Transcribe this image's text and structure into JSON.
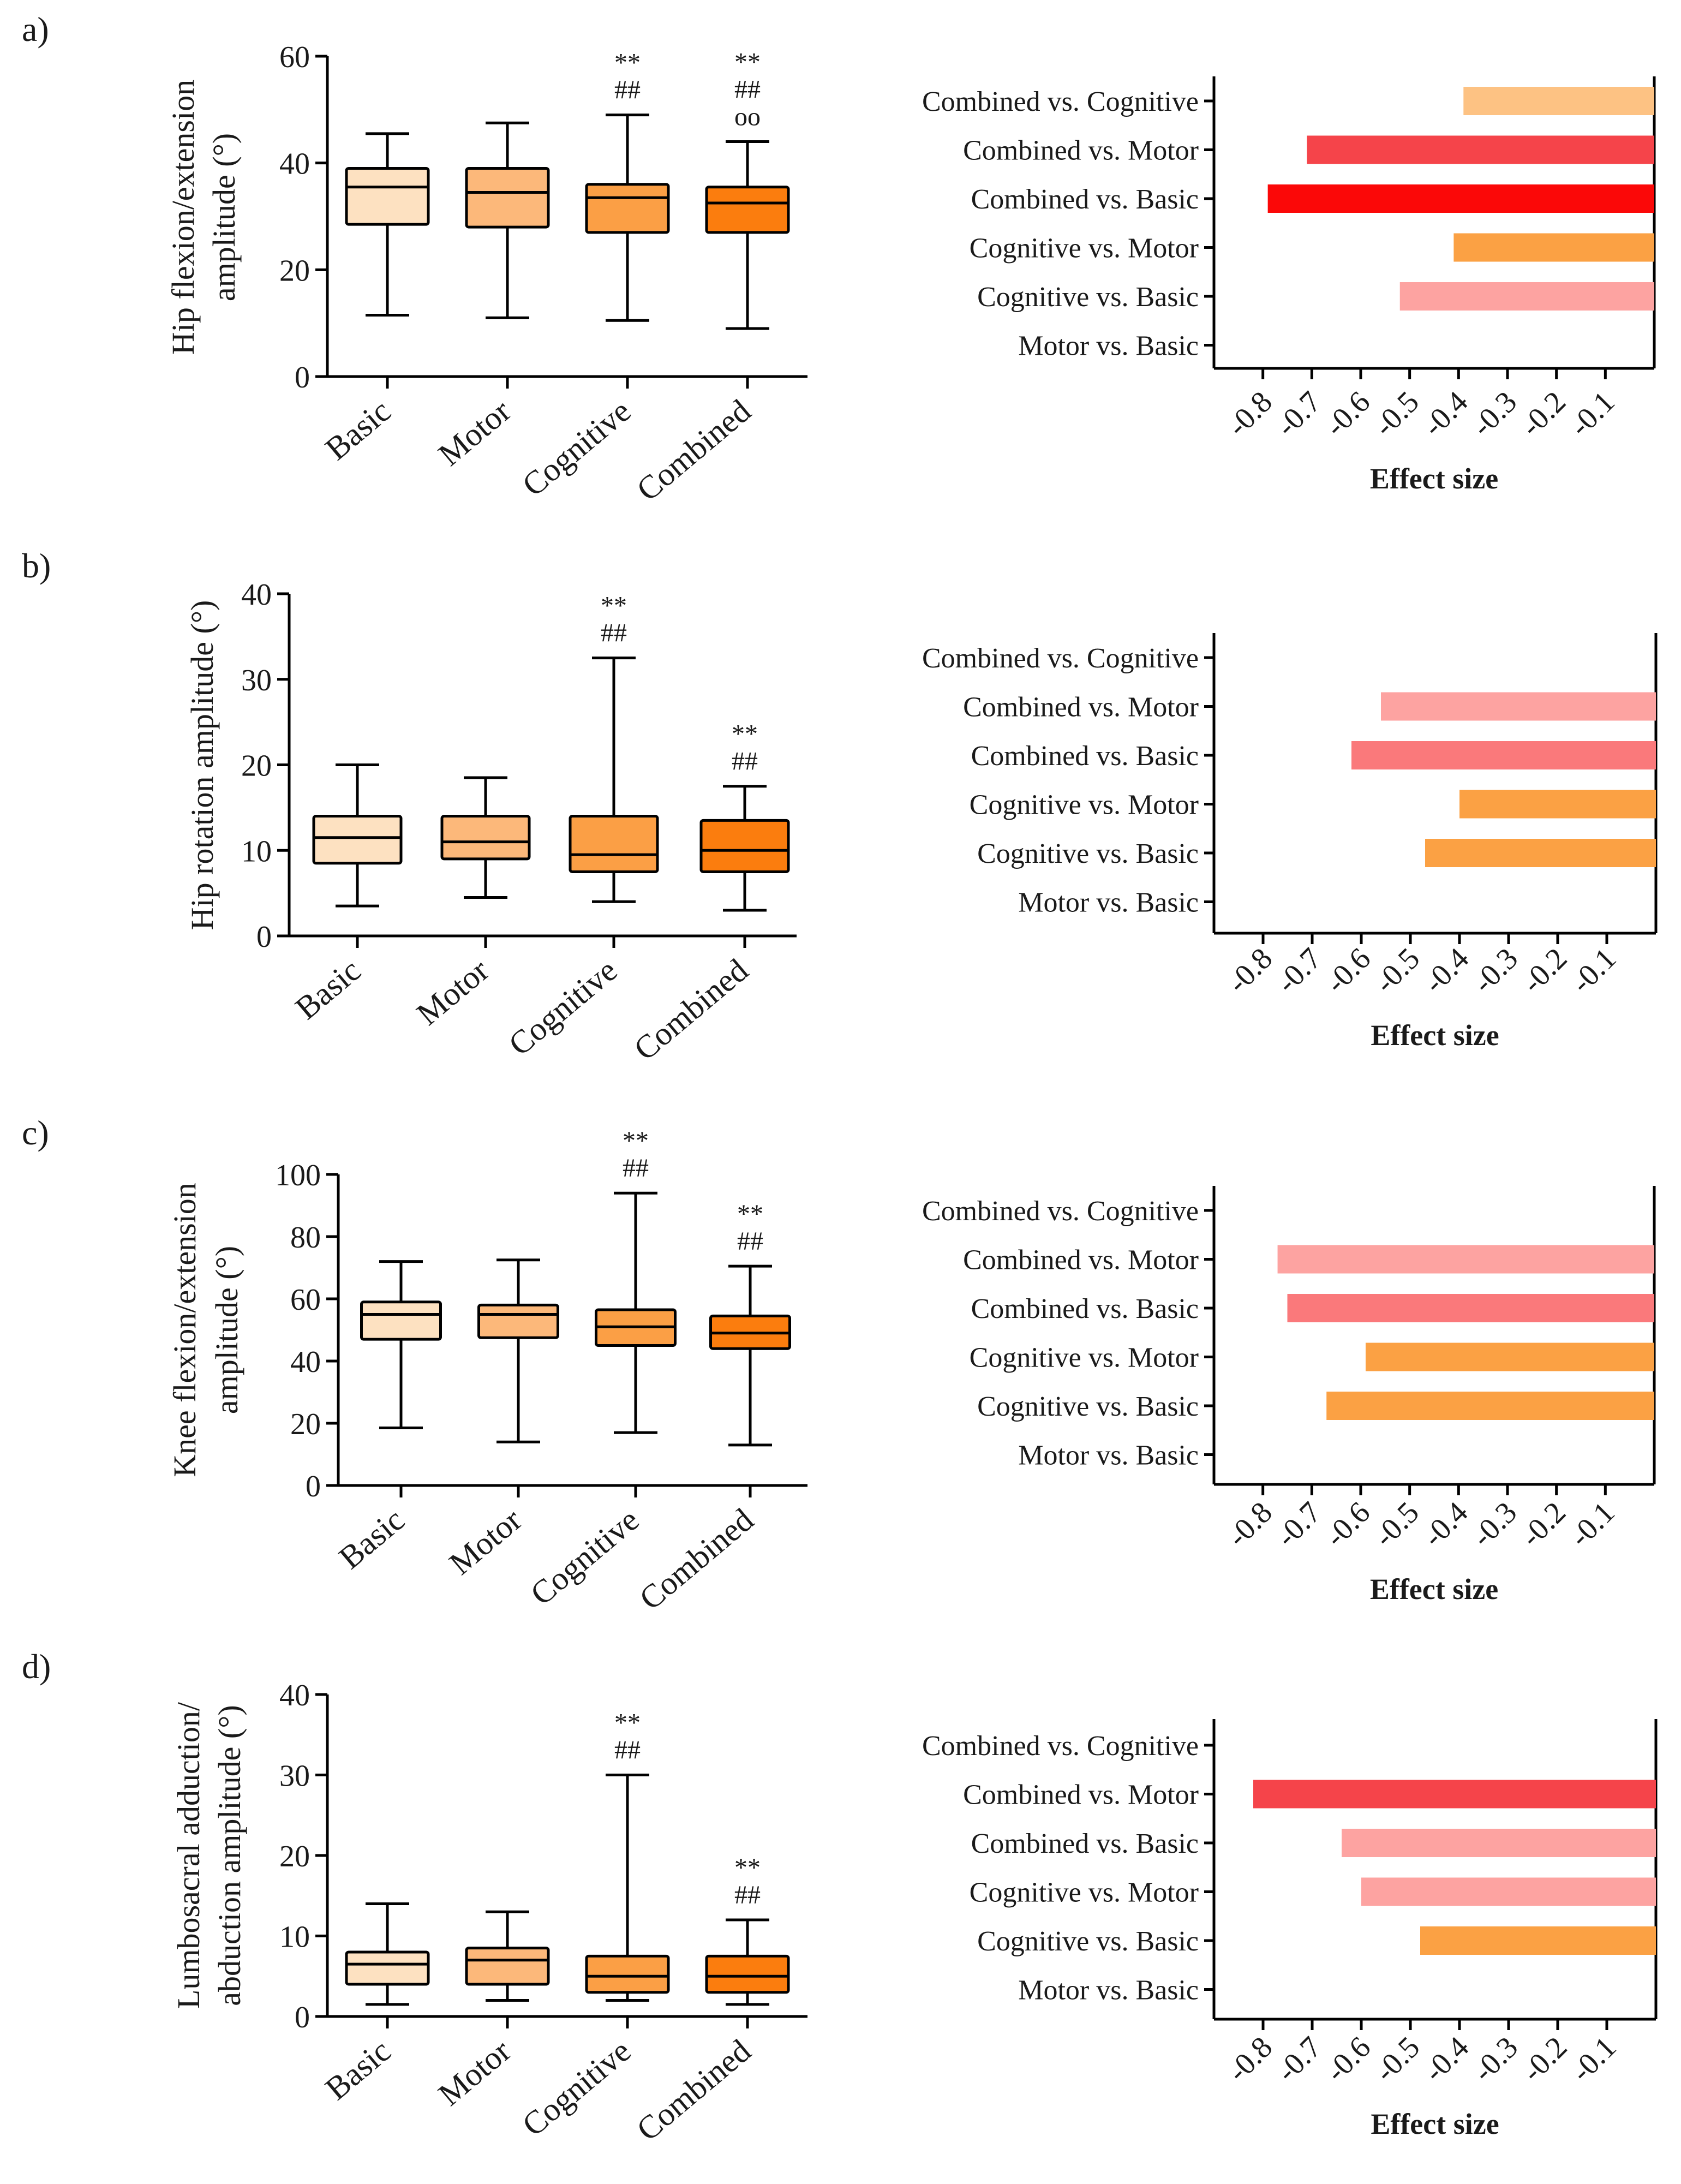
{
  "colors": {
    "basic": "#fde1c1",
    "motor": "#fcb87a",
    "cognitive": "#fb9f45",
    "combined": "#fb7d0e",
    "es_light_orange": "#fdc283",
    "es_orange": "#fba144",
    "es_pink": "#fda3a1",
    "es_salmon": "#fa797b",
    "es_red": "#f5444a",
    "es_bright_red": "#fb0808"
  },
  "chart_data": [
    {
      "type": "box",
      "panel_label": "a)",
      "ylabel": [
        "Hip flexion/extension",
        "amplitude (°)"
      ],
      "ylim": [
        0,
        60
      ],
      "yticks": [
        "0",
        "20",
        "40",
        "60"
      ],
      "categories": [
        "Basic",
        "Motor",
        "Cognitive",
        "Combined"
      ],
      "boxes": [
        {
          "name": "Basic",
          "min": 11.5,
          "q1": 28.5,
          "median": 35.5,
          "q3": 39,
          "max": 45.5,
          "color": "basic",
          "sig": []
        },
        {
          "name": "Motor",
          "min": 11,
          "q1": 28,
          "median": 34.5,
          "q3": 39,
          "max": 47.5,
          "color": "motor",
          "sig": []
        },
        {
          "name": "Cognitive",
          "min": 10.5,
          "q1": 27,
          "median": 33.5,
          "q3": 36,
          "max": 49,
          "color": "cognitive",
          "sig": [
            "**",
            "##"
          ]
        },
        {
          "name": "Combined",
          "min": 9,
          "q1": 27,
          "median": 32.5,
          "q3": 35.5,
          "max": 44,
          "color": "combined",
          "sig": [
            "**",
            "##",
            "οο"
          ]
        }
      ]
    },
    {
      "type": "bar",
      "orientation": "horizontal",
      "xlabel": "Effect size",
      "xticks": [
        "-0.8",
        "-0.7",
        "-0.6",
        "-0.5",
        "-0.4",
        "-0.3",
        "-0.2",
        "-0.1"
      ],
      "xlim": [
        -0.9,
        0
      ],
      "categories": [
        "Combined vs. Cognitive",
        "Combined vs. Motor",
        "Combined vs. Basic",
        "Cognitive vs. Motor",
        "Cognitive vs. Basic",
        "Motor vs. Basic"
      ],
      "values": [
        -0.39,
        -0.71,
        -0.79,
        -0.41,
        -0.52,
        0
      ],
      "bar_colors": [
        "es_light_orange",
        "es_red",
        "es_bright_red",
        "es_orange",
        "es_pink",
        "es_orange"
      ]
    },
    {
      "type": "box",
      "panel_label": "b)",
      "ylabel": [
        "Hip rotation amplitude (°)"
      ],
      "ylim": [
        0,
        40
      ],
      "yticks": [
        "0",
        "10",
        "20",
        "30",
        "40"
      ],
      "categories": [
        "Basic",
        "Motor",
        "Cognitive",
        "Combined"
      ],
      "boxes": [
        {
          "name": "Basic",
          "min": 3.5,
          "q1": 8.5,
          "median": 11.5,
          "q3": 14,
          "max": 20,
          "color": "basic",
          "sig": []
        },
        {
          "name": "Motor",
          "min": 4.5,
          "q1": 9,
          "median": 11,
          "q3": 14,
          "max": 18.5,
          "color": "motor",
          "sig": []
        },
        {
          "name": "Cognitive",
          "min": 4,
          "q1": 7.5,
          "median": 9.5,
          "q3": 14,
          "max": 32.5,
          "color": "cognitive",
          "sig": [
            "**",
            "##"
          ]
        },
        {
          "name": "Combined",
          "min": 3,
          "q1": 7.5,
          "median": 10,
          "q3": 13.5,
          "max": 17.5,
          "color": "combined",
          "sig": [
            "**",
            "##"
          ]
        }
      ]
    },
    {
      "type": "bar",
      "orientation": "horizontal",
      "xlabel": "Effect size",
      "xticks": [
        "-0.8",
        "-0.7",
        "-0.6",
        "-0.5",
        "-0.4",
        "-0.3",
        "-0.2",
        "-0.1"
      ],
      "xlim": [
        -0.9,
        0
      ],
      "categories": [
        "Combined vs. Cognitive",
        "Combined vs. Motor",
        "Combined vs. Basic",
        "Cognitive vs. Motor",
        "Cognitive vs. Basic",
        "Motor vs. Basic"
      ],
      "values": [
        0,
        -0.56,
        -0.62,
        -0.4,
        -0.47,
        0
      ],
      "bar_colors": [
        "es_orange",
        "es_pink",
        "es_salmon",
        "es_orange",
        "es_orange",
        "es_orange"
      ]
    },
    {
      "type": "box",
      "panel_label": "c)",
      "ylabel": [
        "Knee flexion/extension",
        "amplitude (°)"
      ],
      "ylim": [
        0,
        100
      ],
      "yticks": [
        "0",
        "20",
        "40",
        "60",
        "80",
        "100"
      ],
      "categories": [
        "Basic",
        "Motor",
        "Cognitive",
        "Combined"
      ],
      "boxes": [
        {
          "name": "Basic",
          "min": 18.5,
          "q1": 47,
          "median": 55,
          "q3": 59,
          "max": 72,
          "color": "basic",
          "sig": []
        },
        {
          "name": "Motor",
          "min": 14,
          "q1": 47.5,
          "median": 55,
          "q3": 58,
          "max": 72.5,
          "color": "motor",
          "sig": []
        },
        {
          "name": "Cognitive",
          "min": 17,
          "q1": 45,
          "median": 51,
          "q3": 56.5,
          "max": 94,
          "color": "cognitive",
          "sig": [
            "**",
            "##"
          ]
        },
        {
          "name": "Combined",
          "min": 13,
          "q1": 44,
          "median": 49,
          "q3": 54.5,
          "max": 70.5,
          "color": "combined",
          "sig": [
            "**",
            "##"
          ]
        }
      ]
    },
    {
      "type": "bar",
      "orientation": "horizontal",
      "xlabel": "Effect size",
      "xticks": [
        "-0.8",
        "-0.7",
        "-0.6",
        "-0.5",
        "-0.4",
        "-0.3",
        "-0.2",
        "-0.1"
      ],
      "xlim": [
        -0.9,
        0
      ],
      "categories": [
        "Combined vs. Cognitive",
        "Combined vs. Motor",
        "Combined vs. Basic",
        "Cognitive vs. Motor",
        "Cognitive vs. Basic",
        "Motor vs. Basic"
      ],
      "values": [
        0,
        -0.77,
        -0.75,
        -0.59,
        -0.67,
        0
      ],
      "bar_colors": [
        "es_orange",
        "es_pink",
        "es_salmon",
        "es_orange",
        "es_orange",
        "es_orange"
      ]
    },
    {
      "type": "box",
      "panel_label": "d)",
      "ylabel": [
        "Lumbosacral adduction/",
        "abduction amplitude (°)"
      ],
      "ylim": [
        0,
        40
      ],
      "yticks": [
        "0",
        "10",
        "20",
        "30",
        "40"
      ],
      "categories": [
        "Basic",
        "Motor",
        "Cognitive",
        "Combined"
      ],
      "boxes": [
        {
          "name": "Basic",
          "min": 1.5,
          "q1": 4,
          "median": 6.5,
          "q3": 8,
          "max": 14,
          "color": "basic",
          "sig": []
        },
        {
          "name": "Motor",
          "min": 2,
          "q1": 4,
          "median": 7,
          "q3": 8.5,
          "max": 13,
          "color": "motor",
          "sig": []
        },
        {
          "name": "Cognitive",
          "min": 2,
          "q1": 3,
          "median": 5,
          "q3": 7.5,
          "max": 30,
          "color": "cognitive",
          "sig": [
            "**",
            "##"
          ]
        },
        {
          "name": "Combined",
          "min": 1.5,
          "q1": 3,
          "median": 5,
          "q3": 7.5,
          "max": 12,
          "color": "combined",
          "sig": [
            "**",
            "##"
          ]
        }
      ]
    },
    {
      "type": "bar",
      "orientation": "horizontal",
      "xlabel": "Effect size",
      "xticks": [
        "-0.8",
        "-0.7",
        "-0.6",
        "-0.5",
        "-0.4",
        "-0.3",
        "-0.2",
        "-0.1"
      ],
      "xlim": [
        -0.9,
        0
      ],
      "categories": [
        "Combined vs. Cognitive",
        "Combined vs. Motor",
        "Combined vs. Basic",
        "Cognitive vs. Motor",
        "Cognitive vs. Basic",
        "Motor vs. Basic"
      ],
      "values": [
        0,
        -0.82,
        -0.64,
        -0.6,
        -0.48,
        0
      ],
      "bar_colors": [
        "es_orange",
        "es_red",
        "es_pink",
        "es_pink",
        "es_orange",
        "es_orange"
      ]
    }
  ]
}
